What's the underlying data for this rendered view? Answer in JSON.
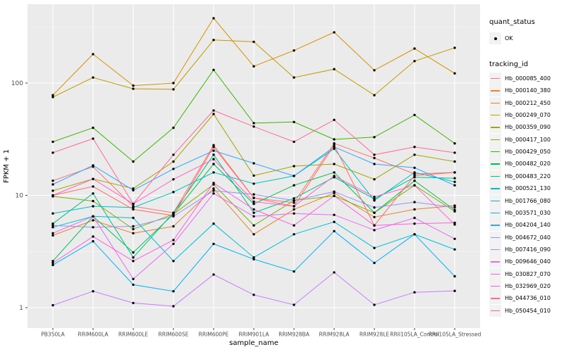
{
  "figure": {
    "background": "#FFFFFF",
    "panel_background": "#EBEBEB",
    "gridline_major_color": "#FFFFFF",
    "gridline_minor_color": "#F5F5F5",
    "axis_text_color": "#4D4D4D",
    "axis_title_color": "#000000",
    "tick_mark_color": "#333333",
    "point_color": "#000000"
  },
  "legend": {
    "quant_status": {
      "title": "quant_status",
      "items": [
        {
          "label": "OK",
          "marker": "point-icon"
        }
      ]
    },
    "tracking_id": {
      "title": "tracking_id"
    },
    "key_background": "#F2F2F2"
  },
  "chart_data": {
    "type": "line",
    "title": "",
    "xlabel": "sample_name",
    "ylabel": "FPKM + 1",
    "y_scale": "log10",
    "y_ticks": [
      1,
      10,
      100
    ],
    "y_tick_labels": [
      "1",
      "10",
      "100"
    ],
    "ylim": [
      0.66,
      505
    ],
    "grid": true,
    "legend_position": "right",
    "marker": {
      "shape": "circle",
      "color": "#000000"
    },
    "categories": [
      "PB350LA",
      "RRIM600LA",
      "RRIM600LE",
      "RRIM600SE",
      "RRIM600PE",
      "RRIM901LA",
      "RRIM928BA",
      "RRIM928LA",
      "RRIM928LE",
      "RRII105LA_Control",
      "RRII105LA_Stressed"
    ],
    "series": [
      {
        "name": "Hb_000085_400",
        "color": "#F8766D",
        "values": [
          13.5,
          18,
          8,
          7,
          28,
          9.5,
          8.6,
          29,
          21.5,
          15.5,
          16
        ]
      },
      {
        "name": "Hb_000140_380",
        "color": "#EA8331",
        "values": [
          4.4,
          6,
          4.6,
          5.3,
          11.5,
          4.5,
          7.5,
          10.5,
          6.4,
          7.5,
          8.1
        ]
      },
      {
        "name": "Hb_000212_450",
        "color": "#D89000",
        "values": [
          78,
          181,
          95,
          100,
          378,
          141,
          195,
          283,
          130,
          203,
          122
        ]
      },
      {
        "name": "Hb_000249_070",
        "color": "#C09B00",
        "values": [
          75,
          112,
          89,
          88,
          242,
          233,
          112,
          133,
          78,
          157,
          206
        ]
      },
      {
        "name": "Hb_000359_090",
        "color": "#A3A500",
        "values": [
          11,
          14,
          11.5,
          20,
          53,
          15,
          18.2,
          19,
          13.9,
          23,
          20
        ]
      },
      {
        "name": "Hb_000417_100",
        "color": "#7CAE00",
        "values": [
          9.8,
          8.9,
          5,
          6.8,
          12.5,
          5.4,
          9,
          9.9,
          7,
          12.3,
          7.2
        ]
      },
      {
        "name": "Hb_000429_050",
        "color": "#39B600",
        "values": [
          30,
          40,
          20,
          40,
          131,
          44,
          45,
          31.5,
          33,
          52,
          29
        ]
      },
      {
        "name": "Hb_000482_020",
        "color": "#00BB4E",
        "values": [
          2.6,
          6.5,
          3.1,
          6.8,
          19,
          8.4,
          12.3,
          16,
          7,
          13.5,
          7.4
        ]
      },
      {
        "name": "Hb_000483_220",
        "color": "#00C087",
        "values": [
          5.6,
          10.4,
          2.8,
          7,
          23,
          7,
          9.4,
          14.5,
          9.3,
          14.5,
          14.2
        ]
      },
      {
        "name": "Hb_000521_130",
        "color": "#00BFC4",
        "values": [
          6.9,
          8,
          7.8,
          10.7,
          16,
          12.7,
          14.9,
          26,
          9,
          16,
          13.2
        ]
      },
      {
        "name": "Hb_001766_080",
        "color": "#00BCD8",
        "values": [
          5.2,
          6.5,
          6.3,
          2.6,
          5.6,
          2.8,
          4.5,
          5.8,
          3.4,
          4.5,
          3.3
        ]
      },
      {
        "name": "Hb_003571_030",
        "color": "#00B0F6",
        "values": [
          2.4,
          3.9,
          1.6,
          1.4,
          3.7,
          2.7,
          2.1,
          4.8,
          2.5,
          4.5,
          1.9
        ]
      },
      {
        "name": "Hb_004204_140",
        "color": "#35A2FF",
        "values": [
          12.5,
          18.5,
          11.1,
          17.2,
          25,
          19.3,
          14.9,
          27,
          19,
          17.6,
          12.3
        ]
      },
      {
        "name": "Hb_004672_040",
        "color": "#9590FF",
        "values": [
          5.4,
          5.2,
          5.3,
          6.5,
          11,
          10.2,
          9,
          10.8,
          7.8,
          8.7,
          7.8
        ]
      },
      {
        "name": "Hb_007416_090",
        "color": "#C77CFF",
        "values": [
          1.05,
          1.4,
          1.1,
          1.03,
          1.97,
          1.3,
          1.06,
          2.06,
          1.06,
          1.37,
          1.41
        ]
      },
      {
        "name": "Hb_009646_040",
        "color": "#E76BF3",
        "values": [
          4.6,
          6.5,
          1.8,
          3.7,
          10.4,
          6.5,
          6.9,
          6.7,
          4.9,
          6.3,
          4.1
        ]
      },
      {
        "name": "Hb_030827_070",
        "color": "#FA62DB",
        "values": [
          2.5,
          4.3,
          2.6,
          4,
          12.9,
          7.5,
          5.4,
          9.9,
          5.4,
          5.6,
          5.7
        ]
      },
      {
        "name": "Hb_032969_020",
        "color": "#FF61CC",
        "values": [
          10,
          14,
          8.4,
          13.9,
          21,
          8.8,
          8,
          14.9,
          9.7,
          12.3,
          5.5
        ]
      },
      {
        "name": "Hb_044736_010",
        "color": "#FF6A98",
        "values": [
          24,
          32,
          8.4,
          23,
          57,
          41,
          30,
          47,
          23,
          27,
          24
        ]
      },
      {
        "name": "Hb_050454_010",
        "color": "#FF6C67",
        "values": [
          10,
          12,
          7.5,
          6.6,
          27,
          9.5,
          8,
          28,
          5.4,
          15,
          16
        ]
      }
    ]
  }
}
